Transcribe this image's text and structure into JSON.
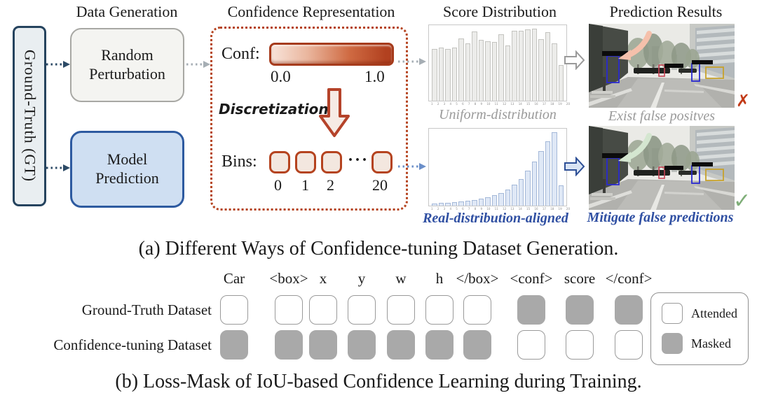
{
  "figure": {
    "panel_a": {
      "column_headers": [
        "Data Generation",
        "Confidence Representation",
        "Score Distribution",
        "Prediction Results"
      ],
      "gt_label": "Ground-Truth (GT)",
      "generators": {
        "random_perturbation": "Random\nPerturbation",
        "model_prediction": "Model\nPrediction"
      },
      "conf": {
        "label": "Conf:",
        "min": "0.0",
        "max": "1.0"
      },
      "discretization_label": "Discretization",
      "bins": {
        "label": "Bins:",
        "ellipsis": "···",
        "tick_labels": [
          "0",
          "1",
          "2",
          "20"
        ]
      },
      "distribution_captions": {
        "uniform": "Uniform-distribution",
        "aligned": "Real-distribution-aligned"
      },
      "result_captions": {
        "top": "Exist false positves",
        "bottom": "Mitigate false predictions"
      },
      "marks": {
        "cross": "✗",
        "check": "✓"
      },
      "caption": "(a) Different Ways of Confidence-tuning Dataset Generation."
    },
    "panel_b": {
      "tokens": [
        "Car",
        "<box>",
        "x",
        "y",
        "w",
        "h",
        "</box>",
        "<conf>",
        "score",
        "</conf>"
      ],
      "rows": [
        {
          "label": "Ground-Truth Dataset",
          "masks": [
            false,
            false,
            false,
            false,
            false,
            false,
            false,
            true,
            true,
            true
          ]
        },
        {
          "label": "Confidence-tuning Dataset",
          "masks": [
            true,
            true,
            true,
            true,
            true,
            true,
            true,
            false,
            false,
            false
          ]
        }
      ],
      "legend": [
        {
          "label": "Attended",
          "type": "attended"
        },
        {
          "label": "Masked",
          "type": "masked"
        }
      ],
      "caption": "(b) Loss-Mask of IoU-based Confidence Learning during Training."
    }
  },
  "chart_data": [
    {
      "type": "bar",
      "name": "uniform-score-distribution",
      "title": "Uniform-distribution",
      "x": [
        1,
        2,
        3,
        4,
        5,
        6,
        7,
        8,
        9,
        10,
        11,
        12,
        13,
        14,
        15,
        16,
        17,
        18,
        19,
        20
      ],
      "values": [
        0.7,
        0.71,
        0.7,
        0.71,
        0.84,
        0.77,
        0.93,
        0.82,
        0.8,
        0.79,
        0.9,
        0.74,
        0.94,
        0.94,
        0.96,
        0.97,
        0.83,
        0.92,
        0.77,
        0.48
      ],
      "ylim": [
        0,
        1
      ],
      "bar_color": "#ececea",
      "bar_border": "#c4c4c0",
      "grid": false,
      "legend_position": "none"
    },
    {
      "type": "bar",
      "name": "real-aligned-score-distribution",
      "title": "Real-distribution-aligned",
      "x": [
        1,
        2,
        3,
        4,
        5,
        6,
        7,
        8,
        9,
        10,
        11,
        12,
        13,
        14,
        15,
        16,
        17,
        18,
        19,
        20
      ],
      "values": [
        0.02,
        0.03,
        0.03,
        0.04,
        0.05,
        0.06,
        0.07,
        0.08,
        0.1,
        0.13,
        0.16,
        0.21,
        0.27,
        0.35,
        0.46,
        0.58,
        0.72,
        0.85,
        0.97,
        0.26
      ],
      "ylim": [
        0,
        1
      ],
      "bar_color": "#dfe8f6",
      "bar_border": "#a4b8d8",
      "grid": false,
      "legend_position": "none"
    }
  ],
  "colors": {
    "accent_red": "#b5431f",
    "navy_border": "#25435e",
    "blue_border": "#2d5aa0",
    "blue_fill": "#cfdff2",
    "gray_caption": "#9a9a9a",
    "blue_caption": "#2f4fa2",
    "cross_red": "#c23a18",
    "check_green": "#7fae78",
    "masked_gray": "#a9a9a9",
    "salmon_arrow": "#f5c0ab",
    "green_arrow": "#d4e6d0"
  }
}
